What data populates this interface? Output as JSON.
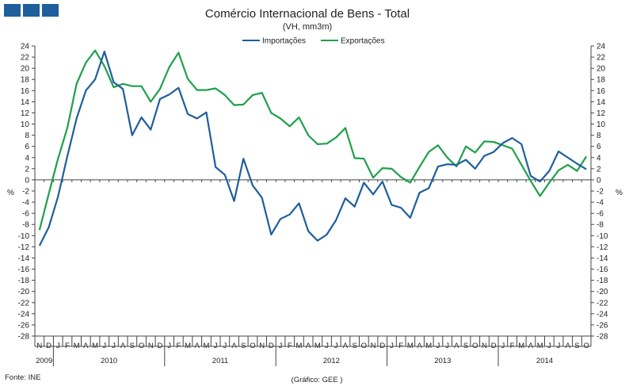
{
  "logo": {
    "icon": "three-blue-squares-logo"
  },
  "source_text": "Fonte: INE",
  "credit_text": "(Gráfico: GEE )",
  "chart_data": {
    "type": "line",
    "title": "Comércio Internacional de Bens - Total",
    "subtitle": "(VH, mm3m)",
    "ylabel_left": "%",
    "ylabel_right": "%",
    "ylim": [
      -28,
      24
    ],
    "ytick_step": 2,
    "grid": false,
    "legend": "top-center",
    "month_labels": [
      "N",
      "D",
      "J",
      "F",
      "M",
      "A",
      "M",
      "J",
      "J",
      "A",
      "S",
      "O",
      "N",
      "D",
      "J",
      "F",
      "M",
      "A",
      "M",
      "J",
      "J",
      "A",
      "S",
      "O",
      "N",
      "D",
      "J",
      "F",
      "M",
      "A",
      "M",
      "J",
      "J",
      "A",
      "S",
      "O",
      "N",
      "D",
      "J",
      "F",
      "M",
      "A",
      "M",
      "J",
      "J",
      "A",
      "S",
      "O",
      "N",
      "D",
      "J",
      "F",
      "M",
      "A",
      "M",
      "J",
      "J",
      "A",
      "S",
      "O"
    ],
    "years": [
      {
        "label": "2009",
        "start": 0,
        "count": 2
      },
      {
        "label": "2010",
        "start": 2,
        "count": 12
      },
      {
        "label": "2011",
        "start": 14,
        "count": 12
      },
      {
        "label": "2012",
        "start": 26,
        "count": 12
      },
      {
        "label": "2013",
        "start": 38,
        "count": 12
      },
      {
        "label": "2014",
        "start": 50,
        "count": 10
      }
    ],
    "series": [
      {
        "name": "Importações",
        "color": "#1f5e9c",
        "values": [
          -11.8,
          -8.5,
          -3,
          4.2,
          11,
          16,
          18,
          23,
          17.5,
          16.3,
          8,
          11.2,
          9,
          14.5,
          15.3,
          16.5,
          11.8,
          11,
          12.1,
          2.3,
          0.9,
          -3.8,
          3.8,
          -1,
          -3.2,
          -9.8,
          -7,
          -6.2,
          -4.2,
          -9.2,
          -10.9,
          -9.8,
          -7.2,
          -3.3,
          -4.8,
          -0.5,
          -2.6,
          -0.3,
          -4.5,
          -5,
          -6.8,
          -2.3,
          -1.5,
          2.4,
          2.8,
          2.7,
          3.6,
          2,
          4.3,
          5,
          6.6,
          7.5,
          6.4,
          0.7,
          -0.3,
          1.6,
          5.1,
          4,
          2.9,
          1.9
        ]
      },
      {
        "name": "Exportações",
        "color": "#1fa04a",
        "values": [
          -9,
          -2.5,
          3.8,
          9.3,
          17.2,
          21,
          23.2,
          20.4,
          16.6,
          17.2,
          16.8,
          16.8,
          14,
          16.3,
          20.2,
          22.8,
          18.1,
          16.1,
          16.1,
          16.4,
          15.2,
          13.4,
          13.5,
          15.2,
          15.6,
          12,
          11,
          9.6,
          11.2,
          8,
          6.4,
          6.5,
          7.6,
          9.3,
          3.9,
          3.8,
          0.4,
          2.1,
          2,
          0.5,
          -0.5,
          2.3,
          5,
          6.2,
          4,
          2.4,
          6,
          4.9,
          6.9,
          6.8,
          6.2,
          5.6,
          2.7,
          -0.2,
          -2.9,
          -0.5,
          1.7,
          2.7,
          1.6,
          4.2
        ]
      }
    ]
  }
}
